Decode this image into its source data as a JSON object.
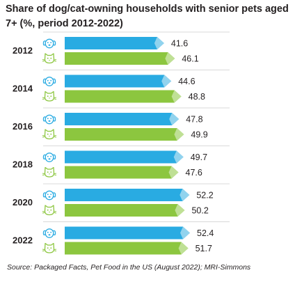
{
  "chart_data": {
    "type": "bar",
    "orientation": "horizontal",
    "title": "Share of dog/cat-owning households with senior pets aged 7+ (%, period 2012-2022)",
    "source": "Source: Packaged Facts, Pet Food in the US (August 2022); MRI-Simmons",
    "categories": [
      "2012",
      "2014",
      "2016",
      "2018",
      "2020",
      "2022"
    ],
    "series": [
      {
        "icon": "dog-icon",
        "color": "#29abe2",
        "values": [
          41.6,
          44.6,
          47.8,
          49.7,
          52.2,
          52.4
        ]
      },
      {
        "icon": "cat-icon",
        "color": "#8cc63f",
        "values": [
          46.1,
          48.8,
          49.9,
          47.6,
          50.2,
          51.7
        ]
      }
    ],
    "grid": false,
    "legend": "none",
    "colors": {
      "dog_bar": "#29abe2",
      "dog_tip": "#a3d9f0",
      "cat_bar": "#8cc63f",
      "cat_tip": "#c8e4a5",
      "icon_dog": "#29abe2",
      "icon_cat": "#8cc63f",
      "divider": "#d9d9d9"
    }
  }
}
